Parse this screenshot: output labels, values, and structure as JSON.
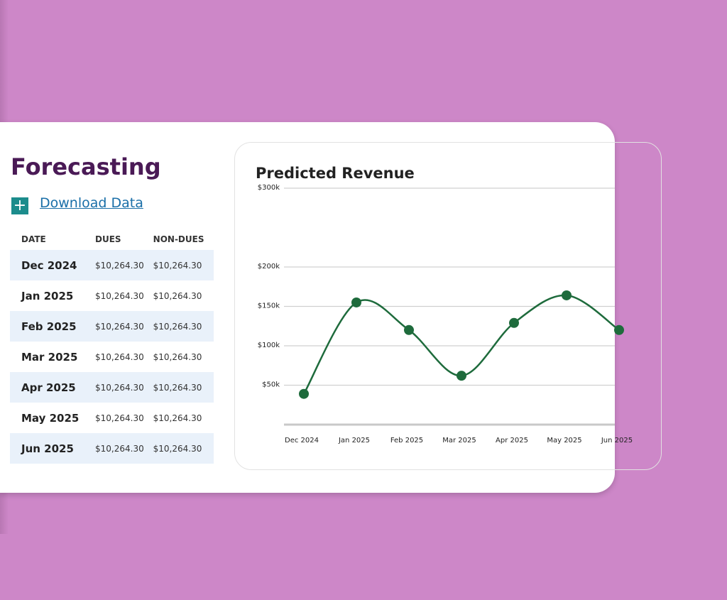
{
  "header": {
    "title": "Forecasting",
    "link": "Download Data"
  },
  "table": {
    "columns": [
      "DATE",
      "DUES",
      "NON-DUES"
    ],
    "rows": [
      [
        "Dec 2024",
        "$10,264.30",
        "$10,264.30"
      ],
      [
        "Jan 2025",
        "$10,264.30",
        "$10,264.30"
      ],
      [
        "Feb 2025",
        "$10,264.30",
        "$10,264.30"
      ],
      [
        "Mar 2025",
        "$10,264.30",
        "$10,264.30"
      ],
      [
        "Apr 2025",
        "$10,264.30",
        "$10,264.30"
      ],
      [
        "May 2025",
        "$10,264.30",
        "$10,264.30"
      ],
      [
        "Jun 2025",
        "$10,264.30",
        "$10,264.30"
      ]
    ]
  },
  "chart_data": {
    "type": "line",
    "title": "Predicted Revenue",
    "categories": [
      "Dec 2024",
      "Jan 2025",
      "Feb 2025",
      "Mar 2025",
      "Apr 2025",
      "May 2025",
      "Jun 2025"
    ],
    "values": [
      39000,
      155000,
      120000,
      62000,
      129000,
      164000,
      120000
    ],
    "color": "#1e6b3c",
    "ylim": [
      0,
      300000
    ],
    "yticks": [
      {
        "value": 50000,
        "label": "$50k"
      },
      {
        "value": 100000,
        "label": "$100k"
      },
      {
        "value": 150000,
        "label": "$150k"
      },
      {
        "value": 200000,
        "label": "$200k"
      },
      {
        "value": 300000,
        "label": "$300k"
      }
    ],
    "grid": true
  }
}
